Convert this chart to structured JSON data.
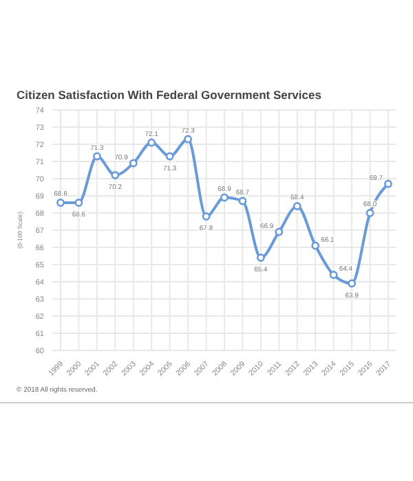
{
  "chart_data": {
    "type": "line",
    "title": "Citizen Satisfaction With Federal Government Services",
    "ylabel": "(0-100 Scale)",
    "annotations": [
      "© 2018 All rights reserved."
    ],
    "categories": [
      "1999",
      "2000",
      "2001",
      "2002",
      "2003",
      "2004",
      "2005",
      "2006",
      "2007",
      "2008",
      "2009",
      "2010",
      "2011",
      "2012",
      "2013",
      "2014",
      "2015",
      "2016",
      "2017"
    ],
    "series": [
      {
        "color": "#6a9bd8",
        "values": [
          68.6,
          68.6,
          71.3,
          70.2,
          70.9,
          72.1,
          71.3,
          72.3,
          67.8,
          68.9,
          68.7,
          65.4,
          66.9,
          68.4,
          66.1,
          64.4,
          63.9,
          68.0,
          69.7
        ],
        "value_labels": [
          "68.6",
          "68.6",
          "71.3",
          "70.2",
          "70.9",
          "72.1",
          "71.3",
          "72.3",
          "67.8",
          "68.9",
          "68.7",
          "65.4",
          "66.9",
          "68.4",
          "66.1",
          "64.4",
          "63.9",
          "68.0",
          "69.7"
        ]
      }
    ],
    "ylim": [
      60,
      74
    ],
    "yticks": [
      60,
      61,
      62,
      63,
      64,
      65,
      66,
      67,
      68,
      69,
      70,
      71,
      72,
      73,
      74
    ],
    "grid": true,
    "marker": "circle"
  }
}
